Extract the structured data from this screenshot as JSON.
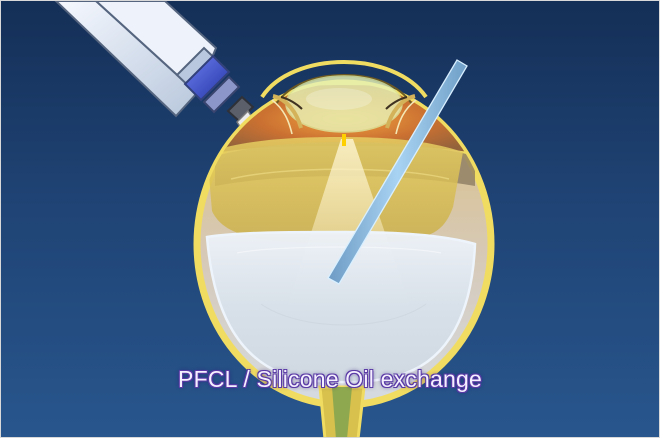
{
  "caption": {
    "text": "PFCL / Silicone Oil exchange"
  },
  "colors": {
    "background_top": "#142f57",
    "background_bottom": "#28568d",
    "sclera_outline": "#f1dc62",
    "retina_orange": "#d58a3a",
    "pfcl_bubble": "#d7e3ef",
    "silicone_oil_yellow": "#d8c24f",
    "light_pipe": "#93c3e6",
    "instrument_handle": "#dbe7f7",
    "caption_outline": "#5a3aa6"
  },
  "icons": {
    "instrument": "cannula-icon",
    "light_pipe": "light-pipe-icon",
    "eye": "eye-cross-section-icon"
  }
}
